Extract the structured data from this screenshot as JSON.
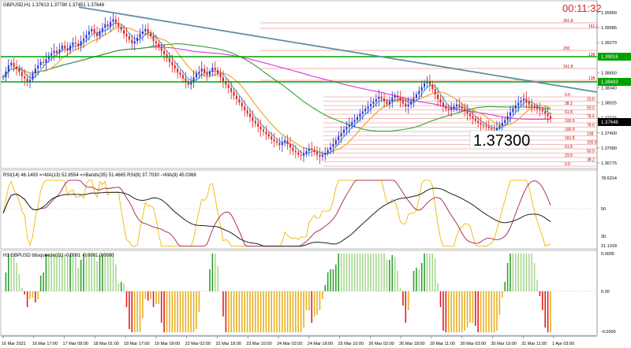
{
  "main_panel": {
    "header": "GBPUSD,H1  1.37613 1.37780 1.37451 1.37648",
    "timer": "00:11:32",
    "big_price": "1.37300",
    "y_ticks": [
      "1.39900",
      "1.39585",
      "1.39270",
      "1.38955",
      "1.38650",
      "1.38340",
      "1.38025",
      "1.37715",
      "1.37400",
      "1.37090",
      "1.36775"
    ],
    "price_tags": [
      {
        "value": "1.39016",
        "color": "#00a000"
      },
      {
        "value": "1.38493",
        "color": "#00a000"
      },
      {
        "value": "1.37648",
        "color": "#000000"
      }
    ],
    "fib_upper": [
      "261.8",
      "161.8",
      "200",
      "138",
      "161.8",
      "138"
    ],
    "fib_levels": [
      "0.0",
      "23.6",
      "38.2",
      "50.0",
      "61.8",
      "78.6",
      "100.0",
      "78.6",
      "100.0",
      "138",
      "161.8",
      "100.0",
      "61.8",
      "50.0",
      "23.6",
      "38.2",
      "0.0"
    ],
    "colors": {
      "bull": "#3030d0",
      "bear": "#e02020",
      "ma_orange": "#e8a020",
      "ma_blue": "#2fb0e0",
      "ma_magenta": "#e040e0",
      "ma_green": "#30a030",
      "trendline": "#5f8f9f",
      "hline": "#00a000"
    }
  },
  "rsi_panel": {
    "header": "RSI(14) 46.1493  =>MA(13) 52.8554  =>Bands(35) 51.4665  RSI(8) 37.7030  ->MA(8) 45.0368",
    "y_ticks": [
      "78.6314",
      "50",
      "30",
      "21.1318"
    ]
  },
  "squeeze_panel": {
    "header": "H1 GBPUSD bbsqueeze(21) -0.0001 -0.0001 0.0000",
    "y_ticks": [
      "0.0005",
      "0.00",
      "-0.0005"
    ]
  },
  "x_axis": {
    "ticks": [
      "16 Mar 2021",
      "16 Mar 17:00",
      "17 Mar 09:00",
      "18 Mar 01:00",
      "18 Mar 17:00",
      "19 Mar 09:00",
      "22 Mar 02:00",
      "22 Mar 18:00",
      "23 Mar 10:00",
      "24 Mar 02:00",
      "24 Mar 18:00",
      "25 Mar 10:00",
      "26 Mar 02:00",
      "26 Mar 18:00",
      "29 Mar 11:00",
      "30 Mar 03:00",
      "30 Mar 19:00",
      "31 Mar 11:00",
      "1 Apr 03:00"
    ]
  },
  "chart_data": {
    "type": "candlestick",
    "symbol": "GBPUSD",
    "timeframe": "H1",
    "ohlc_last": {
      "open": 1.37613,
      "high": 1.3778,
      "low": 1.37451,
      "close": 1.37648
    },
    "y_range": [
      1.3665,
      1.4005
    ],
    "closes": [
      1.385,
      1.3862,
      1.3875,
      1.388,
      1.3872,
      1.3868,
      1.3861,
      1.3852,
      1.3848,
      1.384,
      1.3845,
      1.3858,
      1.3868,
      1.3875,
      1.3882,
      1.388,
      1.3888,
      1.3895,
      1.39,
      1.3905,
      1.39,
      1.3908,
      1.3916,
      1.391,
      1.3905,
      1.3916,
      1.3922,
      1.392,
      1.3915,
      1.3925,
      1.393,
      1.3938,
      1.3945,
      1.395,
      1.3942,
      1.3935,
      1.3945,
      1.3952,
      1.396,
      1.3955,
      1.3965,
      1.397,
      1.3962,
      1.3955,
      1.3948,
      1.394,
      1.3935,
      1.3928,
      1.392,
      1.3925,
      1.3932,
      1.394,
      1.3945,
      1.395,
      1.3942,
      1.3935,
      1.3925,
      1.392,
      1.3912,
      1.3905,
      1.3898,
      1.389,
      1.3882,
      1.3875,
      1.3868,
      1.386,
      1.3855,
      1.3848,
      1.384,
      1.3835,
      1.3842,
      1.385,
      1.3858,
      1.3862,
      1.3868,
      1.386,
      1.3855,
      1.3862,
      1.387,
      1.3865,
      1.3858,
      1.385,
      1.3842,
      1.3835,
      1.3828,
      1.382,
      1.3812,
      1.3805,
      1.3798,
      1.379,
      1.3782,
      1.3775,
      1.3768,
      1.376,
      1.3755,
      1.3748,
      1.3742,
      1.3738,
      1.3733,
      1.3728,
      1.3722,
      1.3718,
      1.3715,
      1.371,
      1.3715,
      1.372,
      1.3712,
      1.3705,
      1.3698,
      1.3695,
      1.369,
      1.3688,
      1.3692,
      1.3698,
      1.3703,
      1.37,
      1.3696,
      1.369,
      1.3686,
      1.369,
      1.3694,
      1.37,
      1.3706,
      1.3712,
      1.372,
      1.3728,
      1.3735,
      1.3742,
      1.3748,
      1.3752,
      1.3758,
      1.3762,
      1.3768,
      1.3775,
      1.378,
      1.3785,
      1.379,
      1.3795,
      1.38,
      1.3805,
      1.381,
      1.3806,
      1.38,
      1.3795,
      1.38,
      1.3808,
      1.3812,
      1.3808,
      1.3802,
      1.3796,
      1.379,
      1.3794,
      1.38,
      1.3808,
      1.3815,
      1.3822,
      1.383,
      1.3838,
      1.3842,
      1.3835,
      1.3826,
      1.3815,
      1.3805,
      1.3798,
      1.379,
      1.3785,
      1.3782,
      1.3786,
      1.379,
      1.3794,
      1.379,
      1.3785,
      1.378,
      1.3775,
      1.377,
      1.3765,
      1.376,
      1.3756,
      1.3752,
      1.375,
      1.3748,
      1.3745,
      1.3742,
      1.374,
      1.3745,
      1.375,
      1.3756,
      1.3762,
      1.377,
      1.3778,
      1.3786,
      1.3792,
      1.3798,
      1.3802,
      1.3806,
      1.38,
      1.3794,
      1.379,
      1.3788,
      1.3785,
      1.3783,
      1.378,
      1.3775,
      1.377,
      1.3765
    ]
  }
}
